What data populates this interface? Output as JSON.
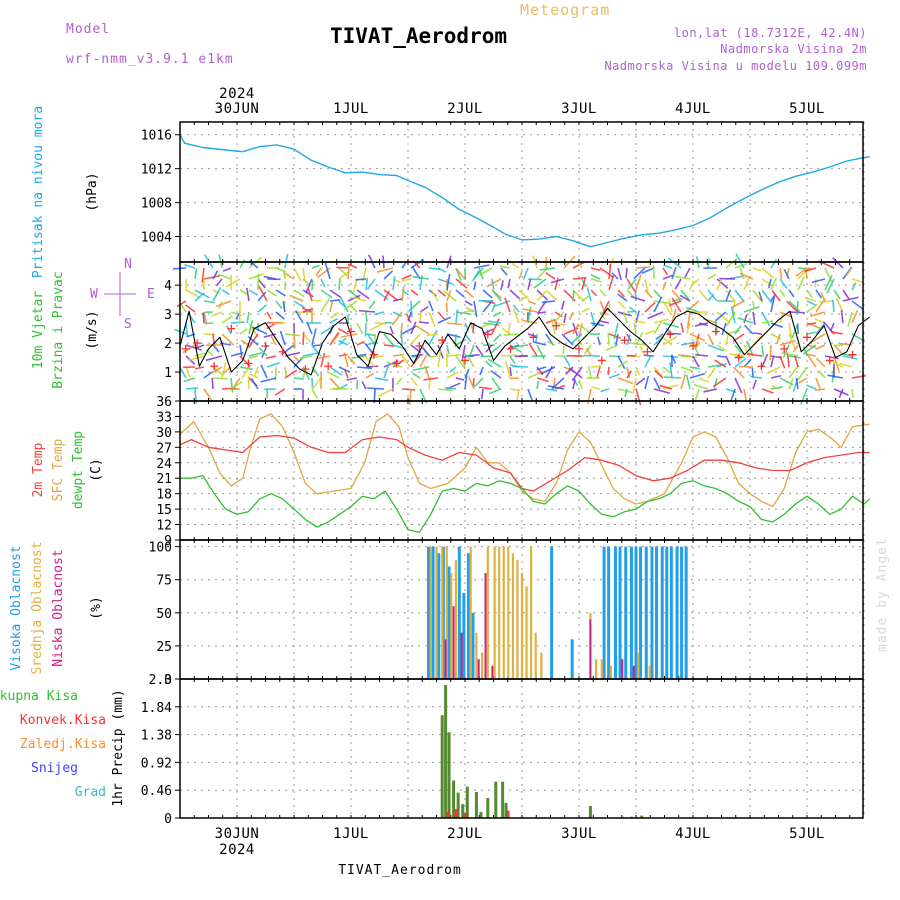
{
  "header": {
    "model_label": "Model",
    "model_value": "wrf-nmm_v3.9.1 e1km",
    "product": "Meteogram",
    "station": "TIVAT_Aerodrom",
    "lonlat": "lon,lat (18.7312E, 42.4N)",
    "elevation": "Nadmorska Visina 2m",
    "model_elevation": "Nadmorska Visina u modelu 109.099m"
  },
  "time_axis": {
    "year": "2024",
    "days": [
      "30JUN",
      "1JUL",
      "2JUL",
      "3JUL",
      "4JUL",
      "5JUL"
    ]
  },
  "footer": {
    "station": "TIVAT_Aerodrom",
    "credit": "made by Angel"
  },
  "colors": {
    "pressure": "#1fa8e8",
    "wind_speed": "#000000",
    "wind_gust": "#ff3030",
    "temp_2m": "#f04040",
    "temp_sfc": "#e0a840",
    "dewpoint": "#30c030",
    "cloud_high": "#20a0e8",
    "cloud_mid": "#e0b040",
    "cloud_low": "#d02080",
    "precip_total": "#558b2f",
    "precip_conv": "#ff3030",
    "precip_frozen": "#ff8c30",
    "snow": "#4040ff",
    "graupel": "#30c0c0"
  },
  "chart_data": [
    {
      "type": "line",
      "id": "pressure",
      "ylabel": "Pritisak na nivou mora",
      "unit": "(hPa)",
      "ylim": [
        1001,
        1017.5
      ],
      "yticks": [
        1004,
        1008,
        1012,
        1016
      ],
      "series": [
        {
          "x": [
            0,
            0.04,
            0.2,
            0.4,
            0.55,
            0.7,
            0.85,
            1.0,
            1.15,
            1.3,
            1.45,
            1.6,
            1.75,
            1.9,
            2.0,
            2.15,
            2.3,
            2.45,
            2.6,
            2.75,
            2.85,
            3.0,
            3.15,
            3.3,
            3.45,
            3.6,
            3.75,
            3.9,
            4.05,
            4.2,
            4.35,
            4.5,
            4.65,
            4.8,
            4.95,
            5.1,
            5.25,
            5.4,
            5.55,
            5.7,
            5.85,
            6.0,
            6.05
          ],
          "values": [
            1016,
            1015,
            1014.5,
            1014.2,
            1014,
            1014.6,
            1014.8,
            1014.3,
            1013,
            1012.2,
            1011.5,
            1011.6,
            1011.3,
            1011.2,
            1010.6,
            1009.8,
            1008.6,
            1007.2,
            1006.2,
            1005.1,
            1004.3,
            1003.6,
            1003.7,
            1004,
            1003.5,
            1002.8,
            1003.3,
            1003.8,
            1004.2,
            1004.4,
            1004.8,
            1005.3,
            1006.2,
            1007.4,
            1008.5,
            1009.5,
            1010.4,
            1011.1,
            1011.6,
            1012.2,
            1012.9,
            1013.3,
            1013.4
          ]
        }
      ]
    },
    {
      "type": "line",
      "id": "wind",
      "ylabel": [
        "10m Vjetar",
        "Brzina i Pravac"
      ],
      "unit": "(m/s)",
      "ylim": [
        0,
        4.8
      ],
      "yticks": [
        1,
        2,
        3,
        4
      ],
      "compass": {
        "n": "N",
        "e": "E",
        "s": "S",
        "w": "W"
      },
      "series": [
        {
          "name": "speed",
          "x": [
            0,
            0.08,
            0.17,
            0.25,
            0.35,
            0.45,
            0.55,
            0.65,
            0.75,
            0.85,
            0.95,
            1.05,
            1.15,
            1.25,
            1.35,
            1.45,
            1.55,
            1.65,
            1.75,
            1.85,
            1.95,
            2.05,
            2.15,
            2.25,
            2.35,
            2.45,
            2.55,
            2.65,
            2.75,
            2.85,
            2.95,
            3.05,
            3.15,
            3.25,
            3.35,
            3.45,
            3.55,
            3.65,
            3.75,
            3.85,
            3.95,
            4.05,
            4.15,
            4.25,
            4.35,
            4.45,
            4.55,
            4.65,
            4.75,
            4.85,
            4.95,
            5.05,
            5.15,
            5.25,
            5.35,
            5.45,
            5.55,
            5.65,
            5.75,
            5.85,
            5.95,
            6.05
          ],
          "values": [
            1.9,
            3.1,
            1.2,
            1.8,
            2.2,
            1.0,
            1.4,
            2.5,
            2.7,
            2.1,
            1.5,
            1.1,
            0.9,
            2.0,
            2.6,
            2.9,
            1.6,
            1.2,
            2.4,
            2.3,
            1.9,
            1.3,
            2.1,
            1.6,
            2.3,
            1.8,
            2.7,
            2.5,
            1.4,
            1.9,
            2.2,
            2.5,
            2.9,
            2.3,
            2.0,
            1.8,
            2.2,
            2.6,
            3.2,
            2.8,
            2.4,
            2.1,
            1.7,
            2.3,
            2.9,
            3.1,
            3.0,
            2.7,
            2.5,
            2.2,
            1.6,
            2.0,
            2.4,
            2.8,
            3.1,
            1.7,
            2.1,
            2.6,
            1.5,
            1.7,
            2.6,
            2.9
          ]
        },
        {
          "name": "gust",
          "x": [
            0.05,
            0.15,
            0.3,
            0.45,
            0.6,
            0.75,
            0.9,
            1.1,
            1.3,
            1.5,
            1.7,
            1.9,
            2.1,
            2.3,
            2.5,
            2.7,
            2.9,
            3.1,
            3.3,
            3.5,
            3.7,
            3.9,
            4.1,
            4.3,
            4.5,
            4.7,
            4.9,
            5.1,
            5.3,
            5.5,
            5.7,
            5.9
          ],
          "values": [
            1.8,
            2.0,
            1.2,
            2.5,
            1.3,
            1.9,
            1.7,
            1.1,
            1.2,
            2.4,
            1.6,
            1.3,
            1.9,
            2.1,
            1.4,
            2.3,
            1.8,
            2.2,
            2.6,
            1.8,
            1.4,
            2.1,
            1.7,
            2.3,
            1.9,
            2.4,
            1.5,
            1.2,
            1.8,
            2.2,
            1.4,
            1.6
          ]
        }
      ]
    },
    {
      "type": "line",
      "id": "temperature",
      "ylabel": [
        "2m Temp",
        "SFC Temp",
        "dewpt Temp"
      ],
      "unit": "(C)",
      "ylim": [
        9,
        36
      ],
      "yticks": [
        9,
        12,
        15,
        18,
        21,
        24,
        27,
        30,
        33,
        36
      ],
      "series": [
        {
          "name": "2m Temp",
          "x": [
            0,
            0.1,
            0.25,
            0.4,
            0.55,
            0.7,
            0.85,
            1.0,
            1.15,
            1.3,
            1.45,
            1.6,
            1.75,
            1.9,
            2.0,
            2.15,
            2.3,
            2.45,
            2.6,
            2.75,
            2.9,
            3.0,
            3.1,
            3.25,
            3.4,
            3.55,
            3.7,
            3.85,
            4.0,
            4.15,
            4.3,
            4.45,
            4.6,
            4.75,
            4.9,
            5.05,
            5.2,
            5.35,
            5.5,
            5.65,
            5.8,
            5.95,
            6.05
          ],
          "values": [
            27.5,
            28.5,
            27.0,
            26.5,
            26.0,
            29.0,
            29.3,
            28.8,
            27.0,
            26.0,
            26.0,
            28.5,
            29.0,
            28.5,
            27.0,
            25.5,
            24.5,
            26.0,
            25.5,
            23.0,
            22.0,
            19.0,
            18.5,
            20.5,
            22.5,
            25.0,
            24.5,
            23.5,
            21.5,
            20.5,
            21.0,
            22.5,
            24.5,
            24.5,
            24.0,
            23.0,
            22.5,
            22.5,
            24.0,
            25.0,
            25.5,
            26.0,
            26.0
          ]
        },
        {
          "name": "SFC Temp",
          "x": [
            0,
            0.12,
            0.25,
            0.35,
            0.45,
            0.55,
            0.62,
            0.7,
            0.8,
            0.9,
            1.0,
            1.1,
            1.2,
            1.35,
            1.5,
            1.62,
            1.72,
            1.82,
            1.92,
            2.0,
            2.1,
            2.2,
            2.35,
            2.5,
            2.6,
            2.7,
            2.8,
            2.9,
            3.0,
            3.1,
            3.2,
            3.3,
            3.4,
            3.5,
            3.6,
            3.7,
            3.8,
            3.9,
            4.0,
            4.1,
            4.25,
            4.4,
            4.5,
            4.6,
            4.7,
            4.8,
            4.9,
            5.0,
            5.1,
            5.2,
            5.3,
            5.4,
            5.5,
            5.6,
            5.7,
            5.8,
            5.9,
            6.05
          ],
          "values": [
            29.5,
            32.0,
            27.0,
            22.0,
            19.5,
            21.0,
            27.0,
            32.5,
            33.5,
            31.0,
            26.0,
            20.0,
            18.0,
            18.5,
            19.0,
            24.0,
            32.0,
            33.5,
            31.0,
            25.0,
            20.0,
            19.0,
            20.0,
            23.0,
            27.0,
            24.0,
            24.0,
            22.0,
            18.5,
            17.0,
            16.5,
            20.0,
            26.5,
            30.0,
            28.0,
            23.5,
            19.0,
            17.0,
            16.0,
            16.5,
            18.0,
            24.0,
            29.0,
            30.0,
            29.0,
            25.0,
            20.0,
            18.0,
            16.5,
            15.5,
            19.0,
            26.0,
            30.0,
            30.5,
            29.0,
            27.0,
            31.0,
            31.5
          ]
        },
        {
          "name": "dewpt Temp",
          "x": [
            0,
            0.1,
            0.2,
            0.3,
            0.4,
            0.5,
            0.6,
            0.7,
            0.8,
            0.9,
            1.0,
            1.1,
            1.2,
            1.3,
            1.4,
            1.5,
            1.6,
            1.7,
            1.8,
            1.9,
            2.0,
            2.1,
            2.2,
            2.3,
            2.4,
            2.5,
            2.6,
            2.7,
            2.8,
            2.9,
            3.0,
            3.1,
            3.2,
            3.3,
            3.4,
            3.5,
            3.6,
            3.7,
            3.8,
            3.9,
            4.0,
            4.1,
            4.2,
            4.3,
            4.4,
            4.5,
            4.6,
            4.7,
            4.8,
            4.9,
            5.0,
            5.1,
            5.2,
            5.3,
            5.4,
            5.5,
            5.6,
            5.7,
            5.8,
            5.9,
            6.0,
            6.05
          ],
          "values": [
            21.0,
            21.0,
            21.5,
            18.0,
            15.0,
            14.0,
            14.5,
            17.0,
            18.0,
            17.0,
            15.0,
            13.0,
            11.5,
            12.5,
            14.0,
            15.5,
            17.5,
            17.0,
            18.5,
            15.0,
            11.0,
            10.5,
            14.0,
            18.5,
            19.0,
            18.5,
            20.0,
            19.5,
            20.5,
            20.0,
            19.0,
            16.5,
            16.0,
            18.0,
            19.5,
            18.5,
            16.0,
            14.0,
            13.5,
            14.5,
            15.0,
            16.5,
            17.0,
            18.0,
            20.0,
            20.5,
            19.5,
            19.0,
            18.0,
            16.5,
            15.5,
            13.0,
            12.5,
            14.0,
            16.0,
            17.5,
            16.0,
            14.0,
            15.0,
            17.5,
            16.0,
            17.0
          ]
        }
      ]
    },
    {
      "type": "bar",
      "id": "cloud",
      "ylabel": [
        "Visoka Oblacnost",
        "Srednja Oblacnost",
        "Niska Oblacnost"
      ],
      "unit": "(%)",
      "ylim": [
        0,
        105
      ],
      "yticks": [
        0,
        25,
        50,
        75,
        100
      ],
      "series": [
        {
          "name": "Visoka Oblacnost",
          "x": [
            2.18,
            2.22,
            2.27,
            2.31,
            2.36,
            2.45,
            2.49,
            2.53,
            2.57,
            3.26,
            3.44,
            3.72,
            3.76,
            3.82,
            3.86,
            3.91,
            3.96,
            4.0,
            4.04,
            4.09,
            4.14,
            4.18,
            4.23,
            4.27,
            4.31,
            4.36,
            4.4,
            4.44
          ],
          "values": [
            100,
            100,
            95,
            100,
            85,
            100,
            65,
            95,
            50,
            100,
            30,
            100,
            100,
            100,
            100,
            100,
            100,
            100,
            100,
            100,
            100,
            100,
            100,
            100,
            100,
            100,
            100,
            100
          ]
        },
        {
          "name": "Srednja Oblacnost",
          "x": [
            2.2,
            2.25,
            2.3,
            2.34,
            2.38,
            2.42,
            2.55,
            2.6,
            2.65,
            2.7,
            2.76,
            2.8,
            2.84,
            2.88,
            2.92,
            2.96,
            3.0,
            3.04,
            3.08,
            3.12,
            3.17,
            3.6,
            3.65,
            3.7,
            3.78,
            4.02,
            4.12
          ],
          "values": [
            100,
            100,
            100,
            100,
            80,
            90,
            100,
            35,
            20,
            100,
            100,
            100,
            100,
            100,
            95,
            90,
            80,
            70,
            100,
            35,
            20,
            50,
            15,
            15,
            10,
            20,
            10
          ]
        },
        {
          "name": "Niska Oblacnost",
          "x": [
            2.33,
            2.4,
            2.47,
            2.62,
            2.68,
            2.74,
            3.6,
            3.88,
            3.98
          ],
          "values": [
            30,
            55,
            35,
            15,
            80,
            10,
            45,
            15,
            10
          ]
        }
      ]
    },
    {
      "type": "bar",
      "id": "precip",
      "ylabel": "1hr Precip (mm)",
      "legend": [
        "Ukupna Kisa",
        "Konvek.Kisa",
        "Zaledj.Kisa",
        "Snijeg",
        "Grad"
      ],
      "ylim": [
        0,
        2.3
      ],
      "yticks": [
        0,
        0.46,
        0.92,
        1.38,
        1.84,
        2.3
      ],
      "series": [
        {
          "name": "Ukupna Kisa",
          "x": [
            2.3,
            2.33,
            2.36,
            2.4,
            2.44,
            2.48,
            2.52,
            2.6,
            2.64,
            2.7,
            2.77,
            2.83,
            2.86,
            3.0,
            3.6,
            3.88,
            3.96,
            4.05
          ],
          "values": [
            1.7,
            2.2,
            1.42,
            0.62,
            0.42,
            0.23,
            0.52,
            0.43,
            0.1,
            0.33,
            0.6,
            0.6,
            0.25,
            0.02,
            0.2,
            0.02,
            0.02,
            0.04
          ]
        },
        {
          "name": "Konvek.Kisa",
          "x": [
            2.35,
            2.42,
            2.5,
            2.88
          ],
          "values": [
            0.1,
            0.15,
            0.08,
            0.12
          ]
        }
      ]
    }
  ]
}
